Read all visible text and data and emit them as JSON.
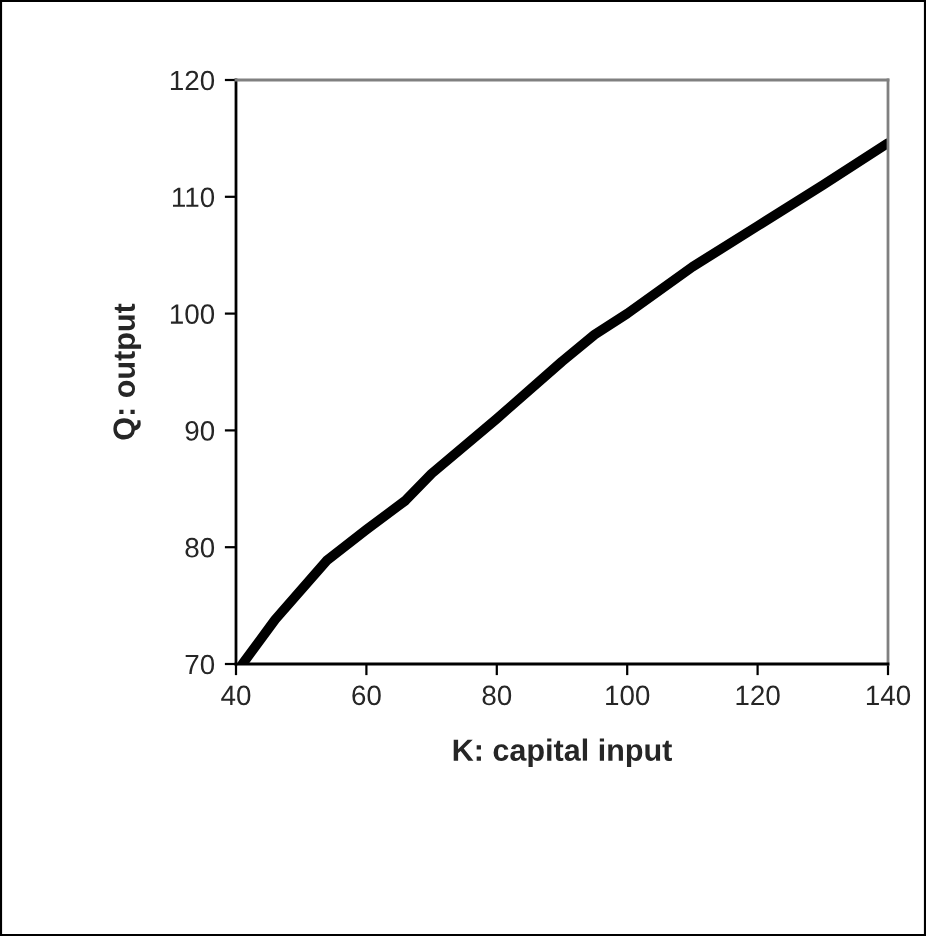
{
  "chart_data": {
    "type": "line",
    "xlabel": "K: capital input",
    "ylabel": "Q: output",
    "x": [
      41,
      46,
      54,
      60,
      66,
      70,
      80,
      90,
      95,
      100,
      110,
      120,
      130,
      140
    ],
    "series": [
      {
        "color": "#000000",
        "values": [
          70,
          73.8,
          78.9,
          81.5,
          84,
          86.3,
          91,
          95.9,
          98.2,
          100,
          104,
          107.5,
          111,
          114.6
        ]
      }
    ],
    "xlim": [
      40,
      140
    ],
    "ylim": [
      70,
      120
    ],
    "xticks": [
      40,
      60,
      80,
      100,
      120,
      140
    ],
    "yticks": [
      70,
      80,
      90,
      100,
      110,
      120
    ],
    "grid": false,
    "legend": false,
    "marker": "none",
    "line_style": "solid"
  }
}
